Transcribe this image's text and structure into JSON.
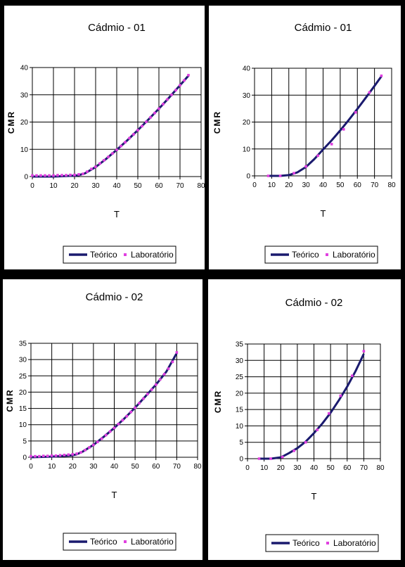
{
  "chart_data": [
    {
      "type": "line",
      "title": "Cádmio - 01",
      "xlabel": "T",
      "ylabel": "CMR",
      "xlim": [
        0,
        80
      ],
      "ylim": [
        0,
        40
      ],
      "xticks": [
        0,
        10,
        20,
        30,
        40,
        50,
        60,
        70,
        80
      ],
      "yticks": [
        0,
        10,
        20,
        30,
        40
      ],
      "grid": true,
      "legend_position": "bottom",
      "series": [
        {
          "name": "Teórico",
          "style": "line",
          "color": "#1a1a6e",
          "x": [
            0,
            10,
            20,
            22,
            25,
            30,
            35,
            40,
            45,
            50,
            55,
            60,
            65,
            70,
            74
          ],
          "y": [
            0,
            0,
            0.3,
            0.5,
            1.2,
            3.5,
            6.5,
            9.8,
            13.3,
            17.0,
            20.9,
            24.9,
            29.1,
            33.5,
            37.0
          ]
        },
        {
          "name": "Laboratório",
          "style": "points",
          "color": "#e040e0",
          "x": [
            0,
            2,
            4,
            6,
            8,
            10,
            12,
            14,
            16,
            18,
            20,
            22,
            24,
            26,
            28,
            30,
            32,
            34,
            36,
            38,
            40,
            42,
            44,
            46,
            48,
            50,
            52,
            54,
            56,
            58,
            60,
            62,
            64,
            66,
            68,
            70,
            72,
            74
          ],
          "y": [
            0.4,
            0.4,
            0.4,
            0.4,
            0.4,
            0.4,
            0.5,
            0.5,
            0.5,
            0.6,
            0.6,
            0.8,
            1.0,
            1.8,
            2.8,
            3.6,
            4.8,
            6.0,
            7.2,
            8.5,
            9.8,
            11.2,
            12.6,
            14.1,
            15.5,
            17.0,
            18.5,
            20.1,
            21.7,
            23.3,
            24.9,
            26.6,
            28.3,
            30.0,
            31.7,
            33.5,
            35.3,
            37.2
          ]
        }
      ]
    },
    {
      "type": "line",
      "title": "Cádmio - 01",
      "xlabel": "T",
      "ylabel": "CMR",
      "xlim": [
        0,
        80
      ],
      "ylim": [
        0,
        40
      ],
      "xticks": [
        0,
        10,
        20,
        30,
        40,
        50,
        60,
        70,
        80
      ],
      "yticks": [
        0,
        10,
        20,
        30,
        40
      ],
      "grid": true,
      "legend_position": "bottom",
      "series": [
        {
          "name": "Teórico",
          "style": "line",
          "color": "#1a1a6e",
          "x": [
            8,
            15,
            20,
            23,
            25,
            30,
            35,
            40,
            45,
            50,
            55,
            60,
            65,
            70,
            74
          ],
          "y": [
            0,
            0,
            0.3,
            0.9,
            1.3,
            3.3,
            6.3,
            9.8,
            13.2,
            16.9,
            20.8,
            24.9,
            29.1,
            33.4,
            37.0
          ]
        },
        {
          "name": "Laboratório",
          "style": "points",
          "color": "#e040e0",
          "x": [
            8,
            15,
            23,
            30,
            37,
            45,
            52,
            59,
            67,
            74
          ],
          "y": [
            0,
            0,
            1.0,
            3.5,
            7.5,
            11.8,
            17.3,
            23.6,
            31.0,
            37.2
          ]
        }
      ]
    },
    {
      "type": "line",
      "title": "Cádmio - 02",
      "xlabel": "T",
      "ylabel": "CMR",
      "xlim": [
        0,
        80
      ],
      "ylim": [
        0,
        35
      ],
      "xticks": [
        0,
        10,
        20,
        30,
        40,
        50,
        60,
        70,
        80
      ],
      "yticks": [
        0,
        5,
        10,
        15,
        20,
        25,
        30,
        35
      ],
      "grid": true,
      "legend_position": "bottom",
      "series": [
        {
          "name": "Teórico",
          "style": "line",
          "color": "#1a1a6e",
          "x": [
            0,
            10,
            20,
            22,
            25,
            30,
            35,
            40,
            45,
            50,
            55,
            60,
            65,
            70
          ],
          "y": [
            0,
            0.2,
            0.6,
            0.9,
            1.8,
            3.8,
            6.3,
            9.0,
            12.0,
            15.2,
            18.7,
            22.3,
            26.3,
            32.0
          ]
        },
        {
          "name": "Laboratório",
          "style": "points",
          "color": "#e040e0",
          "x": [
            0,
            2,
            4,
            6,
            8,
            10,
            12,
            14,
            16,
            18,
            20,
            22,
            24,
            26,
            28,
            30,
            32,
            34,
            36,
            38,
            40,
            42,
            44,
            46,
            48,
            50,
            52,
            54,
            56,
            58,
            60,
            62,
            64,
            66,
            68,
            70
          ],
          "y": [
            0.3,
            0.3,
            0.3,
            0.4,
            0.4,
            0.5,
            0.5,
            0.6,
            0.7,
            0.8,
            0.9,
            1.1,
            1.5,
            2.2,
            3.0,
            3.8,
            4.7,
            5.7,
            6.8,
            7.9,
            9.0,
            10.2,
            11.4,
            12.6,
            13.9,
            15.2,
            16.6,
            18.0,
            19.4,
            20.8,
            22.3,
            23.9,
            25.5,
            27.2,
            29.3,
            32.2
          ]
        }
      ]
    },
    {
      "type": "line",
      "title": "Cádmio - 02",
      "xlabel": "T",
      "ylabel": "CMR",
      "xlim": [
        0,
        80
      ],
      "ylim": [
        0,
        35
      ],
      "xticks": [
        0,
        10,
        20,
        30,
        40,
        50,
        60,
        70,
        80
      ],
      "yticks": [
        0,
        5,
        10,
        15,
        20,
        25,
        30,
        35
      ],
      "grid": true,
      "legend_position": "bottom",
      "series": [
        {
          "name": "Teórico",
          "style": "line",
          "color": "#1a1a6e",
          "x": [
            7,
            14,
            20,
            22,
            25,
            30,
            35,
            40,
            45,
            50,
            55,
            60,
            65,
            70
          ],
          "y": [
            0,
            0,
            0.4,
            0.9,
            1.7,
            3.2,
            5.2,
            7.8,
            10.7,
            14.0,
            17.8,
            22.0,
            26.7,
            32.0
          ]
        },
        {
          "name": "Laboratório",
          "style": "points",
          "color": "#e040e0",
          "x": [
            7,
            14,
            21,
            28,
            35,
            42,
            49,
            56,
            63,
            70
          ],
          "y": [
            0,
            0,
            0.5,
            2.4,
            5.0,
            8.8,
            13.8,
            19.2,
            25.3,
            32.8
          ]
        }
      ]
    }
  ]
}
